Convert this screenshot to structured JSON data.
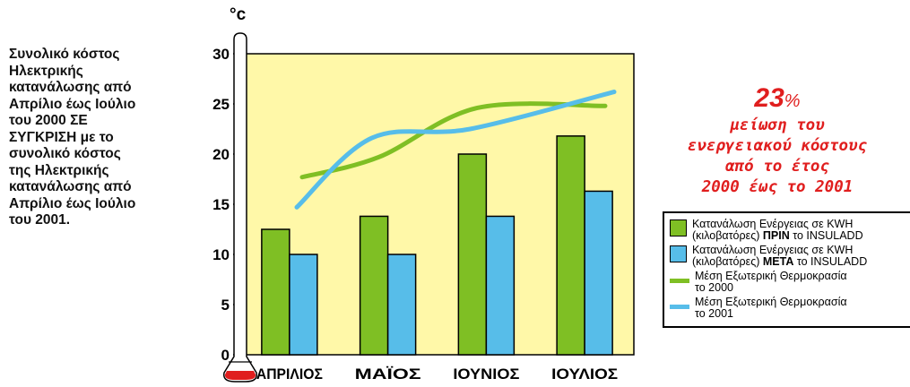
{
  "description": "Συνολικό κόστος\nΗλεκτρικής\nκατανάλωσης από\nΑπρίλιο έως Ιούλιο\nτου 2000 ΣΕ\nΣΥΓΚΡΙΣΗ με το\nσυνολικό κόστος\nτης Ηλεκτρικής\nκατανάλωσης από\nΑπρίλιο έως Ιούλιο\nτου 2001.",
  "callout": {
    "percent": "23",
    "percent_sign": "%",
    "lines": [
      "μείωση του",
      "ενεργειακού κόστους",
      "από το έτος",
      "2000 έως το 2001"
    ]
  },
  "legend": [
    {
      "kind": "bar",
      "color": "#7fbf24",
      "text_pre": "Κατανάλωση Ενέργειας σε KWH\n(κιλοβατόρες) ",
      "text_bold": "ΠΡΙΝ",
      "text_post": " το INSULADD"
    },
    {
      "kind": "bar",
      "color": "#57bde9",
      "text_pre": "Κατανάλωση Ενέργειας σε KWH\n(κιλοβατόρες) ",
      "text_bold": "ΜΕΤΑ",
      "text_post": " το INSULADD"
    },
    {
      "kind": "line",
      "color": "#7fbf24",
      "text_pre": "Μέση Εξωτερική Θερμοκρασία\nτο 2000",
      "text_bold": "",
      "text_post": ""
    },
    {
      "kind": "line",
      "color": "#57bde9",
      "text_pre": "Μέση Εξωτερική Θερμοκρασία\nτο 2001",
      "text_bold": "",
      "text_post": ""
    }
  ],
  "chart_data": {
    "type": "bar",
    "unit_label": "°c",
    "categories": [
      "ΑΠΡΙΛΙΟΣ",
      "ΜΑΪΟΣ",
      "ΙΟΥΝΙΟΣ",
      "ΙΟΥΛΙΟΣ"
    ],
    "ylim": [
      0,
      30
    ],
    "yticks": [
      "0",
      "5",
      "10",
      "15",
      "20",
      "25",
      "30"
    ],
    "grid": false,
    "bar_series": [
      {
        "values": [
          12.5,
          13.8,
          20,
          21.8
        ],
        "color": "#7fbf24"
      },
      {
        "values": [
          10,
          10,
          13.8,
          16.3
        ],
        "color": "#57bde9"
      }
    ],
    "line_series": [
      {
        "values": [
          17.7,
          19.7,
          24.6,
          24.8
        ],
        "color": "#7fbf24"
      },
      {
        "values": [
          14.7,
          21.6,
          22.5,
          26.2
        ],
        "color": "#57bde9"
      }
    ],
    "background": "#fff8a8",
    "thermometer_fill": "#e01e1e"
  }
}
